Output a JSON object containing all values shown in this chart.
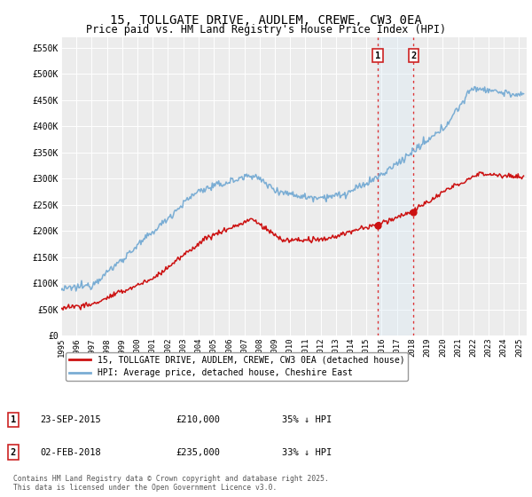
{
  "title": "15, TOLLGATE DRIVE, AUDLEM, CREWE, CW3 0EA",
  "subtitle": "Price paid vs. HM Land Registry's House Price Index (HPI)",
  "title_fontsize": 10,
  "subtitle_fontsize": 8.5,
  "ylabel_ticks": [
    "£0",
    "£50K",
    "£100K",
    "£150K",
    "£200K",
    "£250K",
    "£300K",
    "£350K",
    "£400K",
    "£450K",
    "£500K",
    "£550K"
  ],
  "ytick_values": [
    0,
    50000,
    100000,
    150000,
    200000,
    250000,
    300000,
    350000,
    400000,
    450000,
    500000,
    550000
  ],
  "ylim": [
    0,
    570000
  ],
  "xlim_start": 1995.0,
  "xlim_end": 2025.5,
  "background_color": "#ffffff",
  "plot_bg_color": "#ececec",
  "grid_color": "#ffffff",
  "hpi_color": "#7aadd4",
  "price_color": "#cc1111",
  "purchase_1_x": 2015.73,
  "purchase_1_y": 210000,
  "purchase_2_x": 2018.09,
  "purchase_2_y": 235000,
  "vline_color": "#dd3333",
  "shade_color": "#d8eaf7",
  "legend_label_price": "15, TOLLGATE DRIVE, AUDLEM, CREWE, CW3 0EA (detached house)",
  "legend_label_hpi": "HPI: Average price, detached house, Cheshire East",
  "table_row1": [
    "1",
    "23-SEP-2015",
    "£210,000",
    "35% ↓ HPI"
  ],
  "table_row2": [
    "2",
    "02-FEB-2018",
    "£235,000",
    "33% ↓ HPI"
  ],
  "footer": "Contains HM Land Registry data © Crown copyright and database right 2025.\nThis data is licensed under the Open Government Licence v3.0.",
  "xtick_years": [
    1995,
    1996,
    1997,
    1998,
    1999,
    2000,
    2001,
    2002,
    2003,
    2004,
    2005,
    2006,
    2007,
    2008,
    2009,
    2010,
    2011,
    2012,
    2013,
    2014,
    2015,
    2016,
    2017,
    2018,
    2019,
    2020,
    2021,
    2022,
    2023,
    2024,
    2025
  ]
}
